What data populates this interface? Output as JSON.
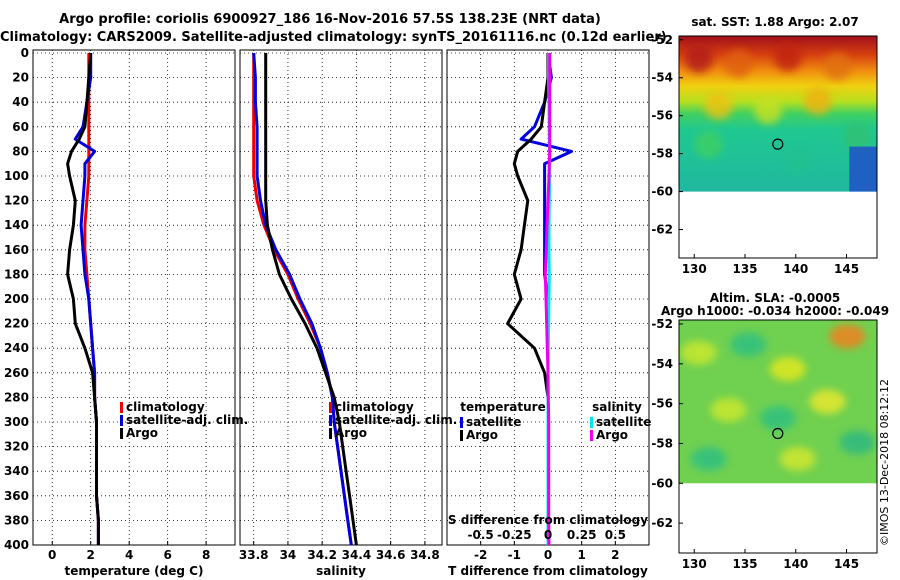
{
  "title_line1": "Argo profile: coriolis 6900927_186 16-Nov-2016 57.5S 138.23E (NRT data)",
  "title_line2": "Climatology: CARS2009. Satellite-adjusted climatology: synTS_20161116.nc (0.12d earlier)",
  "colors": {
    "climatology": "#ee0000",
    "satellite": "#0000dd",
    "argo": "#000000",
    "sat_salinity": "#00e5ee",
    "argo_salinity": "#ee00ee"
  },
  "chart_data": [
    {
      "type": "line",
      "id": "temperature",
      "xlabel": "temperature (deg C)",
      "xlim": [
        -1,
        9.5
      ],
      "ylim": [
        0,
        400
      ],
      "xticks": [
        0,
        2,
        4,
        6,
        8
      ],
      "yticks": [
        0,
        20,
        40,
        60,
        80,
        100,
        120,
        140,
        160,
        180,
        200,
        220,
        240,
        260,
        280,
        300,
        320,
        340,
        360,
        380,
        400
      ],
      "depth": [
        0,
        20,
        40,
        60,
        70,
        80,
        90,
        100,
        120,
        140,
        160,
        180,
        200,
        220,
        240,
        260,
        280,
        300,
        320,
        340,
        360,
        380,
        400
      ],
      "series": [
        {
          "name": "climatology",
          "color": "#ee0000",
          "values": [
            1.9,
            1.9,
            1.9,
            1.9,
            1.9,
            1.9,
            1.9,
            1.9,
            1.8,
            1.7,
            1.7,
            1.8,
            1.9,
            2.0,
            2.1,
            2.2,
            2.2,
            2.3,
            2.3,
            2.3,
            2.3,
            2.4,
            2.4
          ]
        },
        {
          "name": "satellite-adj. clim.",
          "color": "#0000dd",
          "values": [
            2.0,
            2.0,
            1.8,
            1.6,
            1.2,
            2.2,
            1.7,
            1.7,
            1.6,
            1.5,
            1.6,
            1.7,
            1.9,
            2.0,
            2.1,
            2.2,
            2.2,
            2.3,
            2.3,
            2.3,
            2.3,
            2.4,
            2.4
          ]
        },
        {
          "name": "Argo",
          "color": "#000000",
          "values": [
            2.0,
            1.9,
            1.8,
            1.7,
            1.4,
            1.0,
            0.8,
            0.9,
            1.2,
            1.1,
            0.9,
            0.8,
            1.1,
            1.2,
            1.7,
            2.1,
            2.2,
            2.3,
            2.3,
            2.3,
            2.3,
            2.4,
            2.4
          ]
        }
      ],
      "legend": [
        "climatology",
        "satellite-adj. clim.",
        "Argo"
      ]
    },
    {
      "type": "line",
      "id": "salinity",
      "xlabel": "salinity",
      "xlim": [
        33.72,
        34.9
      ],
      "ylim": [
        0,
        400
      ],
      "xticks": [
        33.8,
        34,
        34.2,
        34.4,
        34.6,
        34.8
      ],
      "xticklabels": [
        "33.8",
        "34",
        "34.2",
        "34.4",
        "34.6",
        "34.8"
      ],
      "depth": [
        0,
        20,
        40,
        60,
        80,
        100,
        120,
        140,
        160,
        180,
        200,
        220,
        240,
        260,
        280,
        300,
        320,
        340,
        360,
        380,
        400
      ],
      "series": [
        {
          "name": "climatology",
          "color": "#ee0000",
          "values": [
            33.8,
            33.8,
            33.8,
            33.8,
            33.8,
            33.8,
            33.82,
            33.86,
            33.92,
            34.0,
            34.06,
            34.13,
            34.19,
            34.23,
            34.26,
            34.27,
            34.29,
            34.31,
            34.33,
            34.35,
            34.37
          ]
        },
        {
          "name": "satellite-adj. clim.",
          "color": "#0000dd",
          "values": [
            33.8,
            33.81,
            33.81,
            33.82,
            33.82,
            33.82,
            33.84,
            33.87,
            33.93,
            34.01,
            34.07,
            34.14,
            34.19,
            34.23,
            34.26,
            34.27,
            34.29,
            34.31,
            34.33,
            34.35,
            34.37
          ]
        },
        {
          "name": "Argo",
          "color": "#000000",
          "values": [
            33.87,
            33.87,
            33.87,
            33.87,
            33.87,
            33.87,
            33.87,
            33.88,
            33.91,
            33.95,
            34.02,
            34.1,
            34.17,
            34.22,
            34.27,
            34.3,
            34.32,
            34.34,
            34.36,
            34.38,
            34.4
          ]
        }
      ],
      "legend": [
        "climatology",
        "satellite-adj. clim.",
        "Argo"
      ]
    },
    {
      "type": "line",
      "id": "difference",
      "xlabel": "T difference from climatology",
      "xlabel_top": "S difference from climatology",
      "xlim": [
        -3,
        3
      ],
      "ylim": [
        0,
        400
      ],
      "xticks": [
        -2,
        -1,
        0,
        1,
        2
      ],
      "top_ticks": [
        -0.5,
        -0.25,
        0,
        0.25,
        0.5
      ],
      "top_ticklabels": [
        "-0.5",
        "-0.25",
        "0",
        "0.25",
        "0.5"
      ],
      "depth": [
        0,
        20,
        40,
        60,
        70,
        80,
        90,
        100,
        120,
        140,
        160,
        180,
        200,
        220,
        240,
        260,
        280,
        300,
        320,
        340,
        360,
        380,
        400
      ],
      "series": [
        {
          "name": "satellite (temperature)",
          "color": "#0000dd",
          "values": [
            0.0,
            0.1,
            -0.1,
            -0.4,
            -0.8,
            0.7,
            -0.1,
            -0.1,
            -0.1,
            -0.1,
            -0.1,
            -0.1,
            0.0,
            0.0,
            0.0,
            0.0,
            0.0,
            0.0,
            0.0,
            0.0,
            0.0,
            0.0,
            0.0
          ]
        },
        {
          "name": "Argo (temperature)",
          "color": "#000000",
          "values": [
            0.0,
            0.0,
            -0.1,
            -0.2,
            -0.5,
            -0.9,
            -1.0,
            -0.9,
            -0.6,
            -0.7,
            -0.8,
            -1.0,
            -0.8,
            -1.2,
            -0.4,
            -0.1,
            0.0,
            0.0,
            0.0,
            0.0,
            0.0,
            0.0,
            0.0
          ]
        },
        {
          "name": "satellite (salinity)",
          "color": "#00e5ee",
          "values": [
            0.02,
            0.02,
            0.03,
            0.04,
            0.04,
            0.05,
            0.05,
            0.05,
            0.04,
            0.03,
            0.03,
            0.04,
            0.03,
            0.02,
            0.01,
            0.0,
            0.0,
            0.0,
            0.0,
            0.0,
            0.0,
            0.0,
            0.0
          ]
        },
        {
          "name": "Argo (salinity)",
          "color": "#ee00ee",
          "values": [
            0.05,
            0.05,
            0.05,
            0.05,
            0.05,
            0.05,
            0.04,
            0.03,
            0.0,
            -0.03,
            -0.05,
            -0.08,
            -0.06,
            -0.04,
            -0.02,
            0.0,
            0.01,
            0.02,
            0.02,
            0.02,
            0.02,
            0.02,
            0.03
          ]
        }
      ],
      "legend_left_title": "temperature",
      "legend_right_title": "salinity",
      "legend": [
        "satellite",
        "Argo",
        "satellite",
        "Argo"
      ]
    },
    {
      "type": "heatmap",
      "id": "sst_map",
      "title": "sat. SST: 1.88 Argo: 2.07",
      "xlim": [
        128.5,
        148
      ],
      "ylim": [
        -63.5,
        -51.8
      ],
      "xticks": [
        130,
        135,
        140,
        145
      ],
      "yticks": [
        -52,
        -54,
        -56,
        -58,
        -60,
        -62
      ],
      "argo_position": {
        "lon": 138.23,
        "lat": -57.5
      }
    },
    {
      "type": "heatmap",
      "id": "sla_map",
      "title": "Altim. SLA: -0.0005",
      "subtitle": "Argo h1000: -0.034 h2000: -0.049",
      "xlim": [
        128.5,
        148
      ],
      "ylim": [
        -63.5,
        -51.8
      ],
      "xticks": [
        130,
        135,
        140,
        145
      ],
      "yticks": [
        -52,
        -54,
        -56,
        -58,
        -60,
        -62
      ],
      "argo_position": {
        "lon": 138.23,
        "lat": -57.5
      }
    }
  ],
  "footer": "©IMOS 13-Dec-2018 08:12:12"
}
